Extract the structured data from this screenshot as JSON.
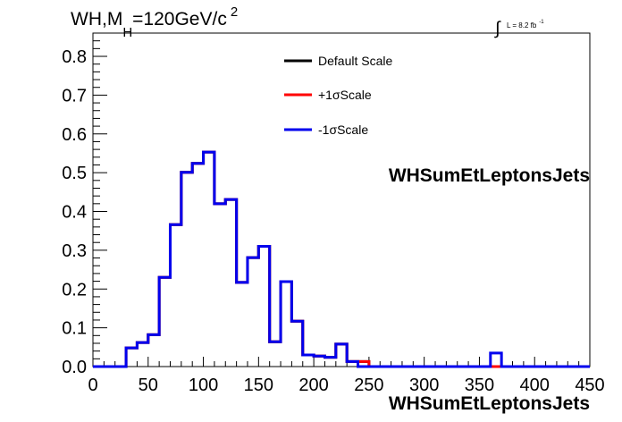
{
  "chart_data": {
    "type": "line",
    "title_parts": {
      "main": "WH,M",
      "sub": "H",
      "rest": "=120GeV/c",
      "sup": "2"
    },
    "lumi_label": {
      "integral": "∫",
      "text": "L = 8.2 fb",
      "sup": "-1"
    },
    "xlabel": "WHSumEtLeptonsJets",
    "ylabel": "",
    "xlim": [
      0,
      450
    ],
    "ylim": [
      0,
      0.86
    ],
    "x_ticks": [
      "0",
      "50",
      "100",
      "150",
      "200",
      "250",
      "300",
      "350",
      "400",
      "450"
    ],
    "x_tick_values": [
      0,
      50,
      100,
      150,
      200,
      250,
      300,
      350,
      400,
      450
    ],
    "y_ticks": [
      "0.0",
      "0.1",
      "0.2",
      "0.3",
      "0.4",
      "0.5",
      "0.6",
      "0.7",
      "0.8"
    ],
    "y_tick_values": [
      0.0,
      0.1,
      0.2,
      0.3,
      0.4,
      0.5,
      0.6,
      0.7,
      0.8
    ],
    "bin_edges": [
      0,
      10,
      20,
      30,
      40,
      50,
      60,
      70,
      80,
      90,
      100,
      110,
      120,
      130,
      140,
      150,
      160,
      170,
      180,
      190,
      200,
      210,
      220,
      230,
      240,
      250,
      260,
      270,
      280,
      290,
      300,
      310,
      320,
      330,
      340,
      350,
      360,
      370,
      380,
      390,
      400,
      410,
      420,
      430,
      440,
      450
    ],
    "series": [
      {
        "name": "Default Scale",
        "color": "#000000",
        "values": [
          0,
          0,
          0,
          0.048,
          0.062,
          0.082,
          0.23,
          0.366,
          0.501,
          0.524,
          0.553,
          0.42,
          0.431,
          0.217,
          0.281,
          0.31,
          0.064,
          0.219,
          0.117,
          0.03,
          0.027,
          0.024,
          0.058,
          0.013,
          0.013,
          0,
          0,
          0,
          0,
          0,
          0,
          0,
          0,
          0,
          0,
          0,
          0,
          0,
          0,
          0,
          0,
          0,
          0,
          0,
          0
        ]
      },
      {
        "name": "+1σScale",
        "color": "#ff0000",
        "values": [
          0,
          0,
          0,
          0.048,
          0.062,
          0.082,
          0.23,
          0.366,
          0.501,
          0.524,
          0.553,
          0.42,
          0.431,
          0.217,
          0.281,
          0.31,
          0.064,
          0.219,
          0.117,
          0.03,
          0.027,
          0.024,
          0.058,
          0.013,
          0.013,
          0,
          0,
          0,
          0,
          0,
          0,
          0,
          0,
          0,
          0,
          0,
          0,
          0,
          0,
          0,
          0,
          0,
          0,
          0,
          0
        ]
      },
      {
        "name": "-1σScale",
        "color": "#0000ee",
        "values": [
          0,
          0,
          0,
          0.048,
          0.062,
          0.082,
          0.23,
          0.366,
          0.501,
          0.524,
          0.553,
          0.42,
          0.431,
          0.217,
          0.281,
          0.31,
          0.064,
          0.219,
          0.117,
          0.03,
          0.027,
          0.024,
          0.058,
          0.013,
          0,
          0,
          0,
          0,
          0,
          0,
          0,
          0,
          0,
          0,
          0,
          0,
          0.035,
          0,
          0,
          0,
          0,
          0,
          0,
          0,
          0
        ]
      }
    ],
    "legend": {
      "placement": "top-center",
      "entries": [
        {
          "label": "Default Scale",
          "color": "#000000"
        },
        {
          "label": "+1σScale",
          "color": "#ff0000"
        },
        {
          "label": "-1σScale",
          "color": "#0000ee"
        }
      ]
    },
    "grid": false
  }
}
